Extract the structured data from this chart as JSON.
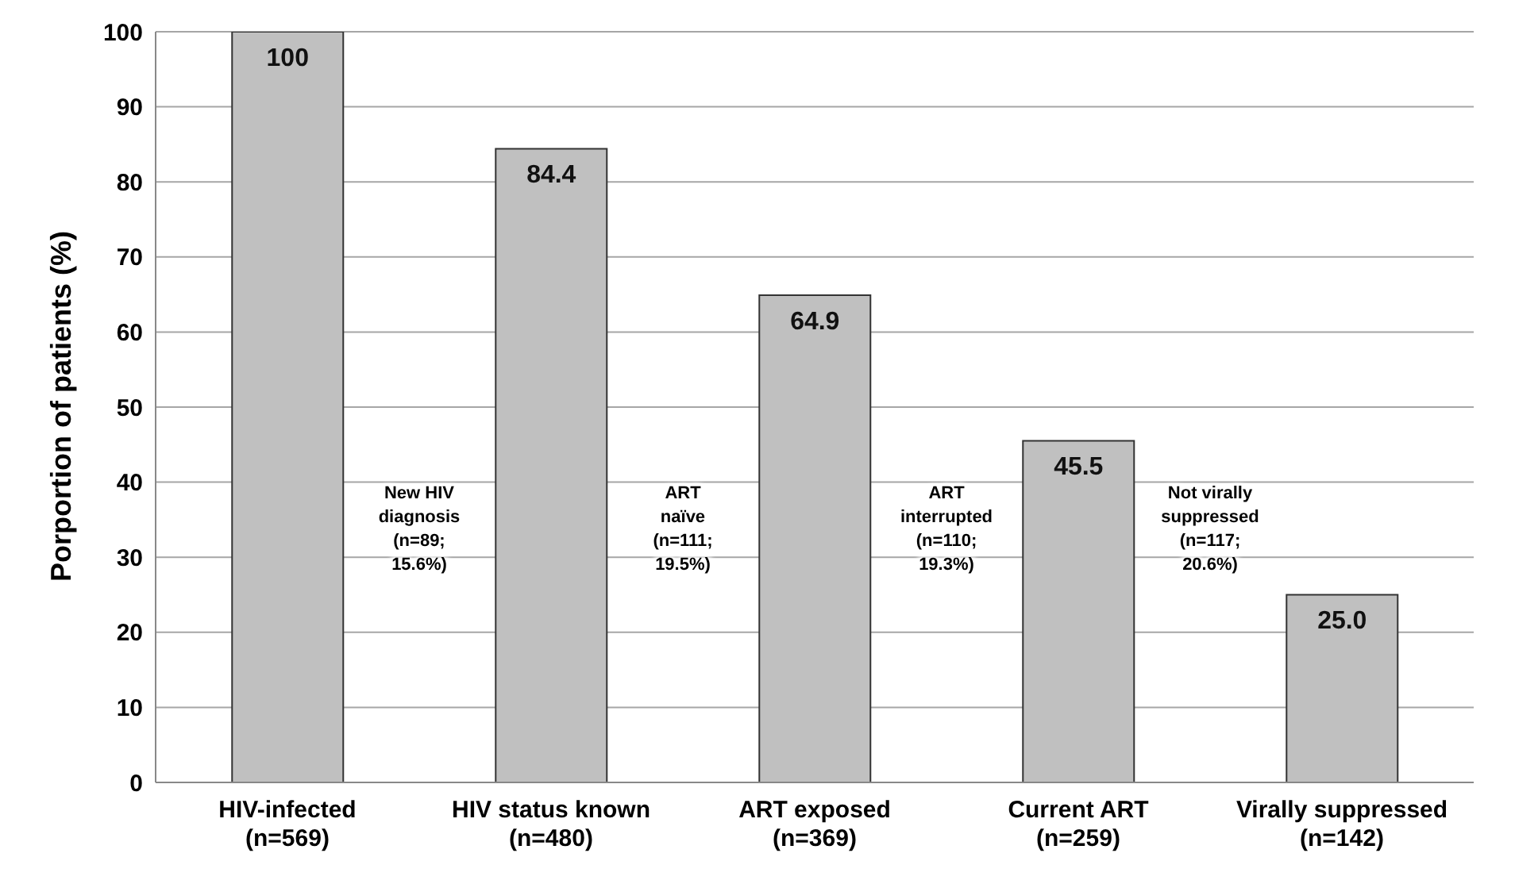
{
  "chart_data": {
    "type": "bar",
    "ylabel": "Porportion of patients (%)",
    "categories": [
      "HIV-infected\n(n=569)",
      "HIV status known\n(n=480)",
      "ART exposed\n(n=369)",
      "Current ART\n(n=259)",
      "Virally suppressed\n(n=142)"
    ],
    "values": [
      100,
      84.4,
      64.9,
      45.5,
      25.0
    ],
    "value_labels": [
      "100",
      "84.4",
      "64.9",
      "45.5",
      "25.0"
    ],
    "color": "#c0c0c0",
    "ylim": [
      0,
      100
    ],
    "yticks": [
      0,
      10,
      20,
      30,
      40,
      50,
      60,
      70,
      80,
      90,
      100
    ],
    "grid": "y",
    "legend": false,
    "annotations": [
      "New HIV\ndiagnosis\n(n=89;\n15.6%)",
      "ART\nnaïve\n(n=111;\n19.5%)",
      "ART\ninterrupted\n(n=110;\n19.3%)",
      "Not virally\nsuppressed\n(n=117;\n20.6%)"
    ]
  }
}
